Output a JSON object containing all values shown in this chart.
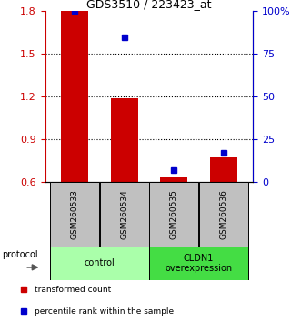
{
  "title": "GDS3510 / 223423_at",
  "categories": [
    "GSM260533",
    "GSM260534",
    "GSM260535",
    "GSM260536"
  ],
  "red_values": [
    1.8,
    1.19,
    0.635,
    0.775
  ],
  "blue_percentiles": [
    100,
    85,
    7,
    17
  ],
  "ylim_left": [
    0.6,
    1.8
  ],
  "ylim_right": [
    0,
    100
  ],
  "yticks_left": [
    0.6,
    0.9,
    1.2,
    1.5,
    1.8
  ],
  "yticks_right": [
    0,
    25,
    50,
    75,
    100
  ],
  "ytick_labels_right": [
    "0",
    "25",
    "50",
    "75",
    "100%"
  ],
  "left_color": "#cc0000",
  "right_color": "#0000cc",
  "bar_width": 0.55,
  "group1_color": "#aaffaa",
  "group2_color": "#44dd44",
  "sample_box_color": "#c0c0c0",
  "protocol_label": "protocol",
  "legend1": "transformed count",
  "legend2": "percentile rank within the sample",
  "grid_yticks": [
    0.9,
    1.2,
    1.5
  ]
}
